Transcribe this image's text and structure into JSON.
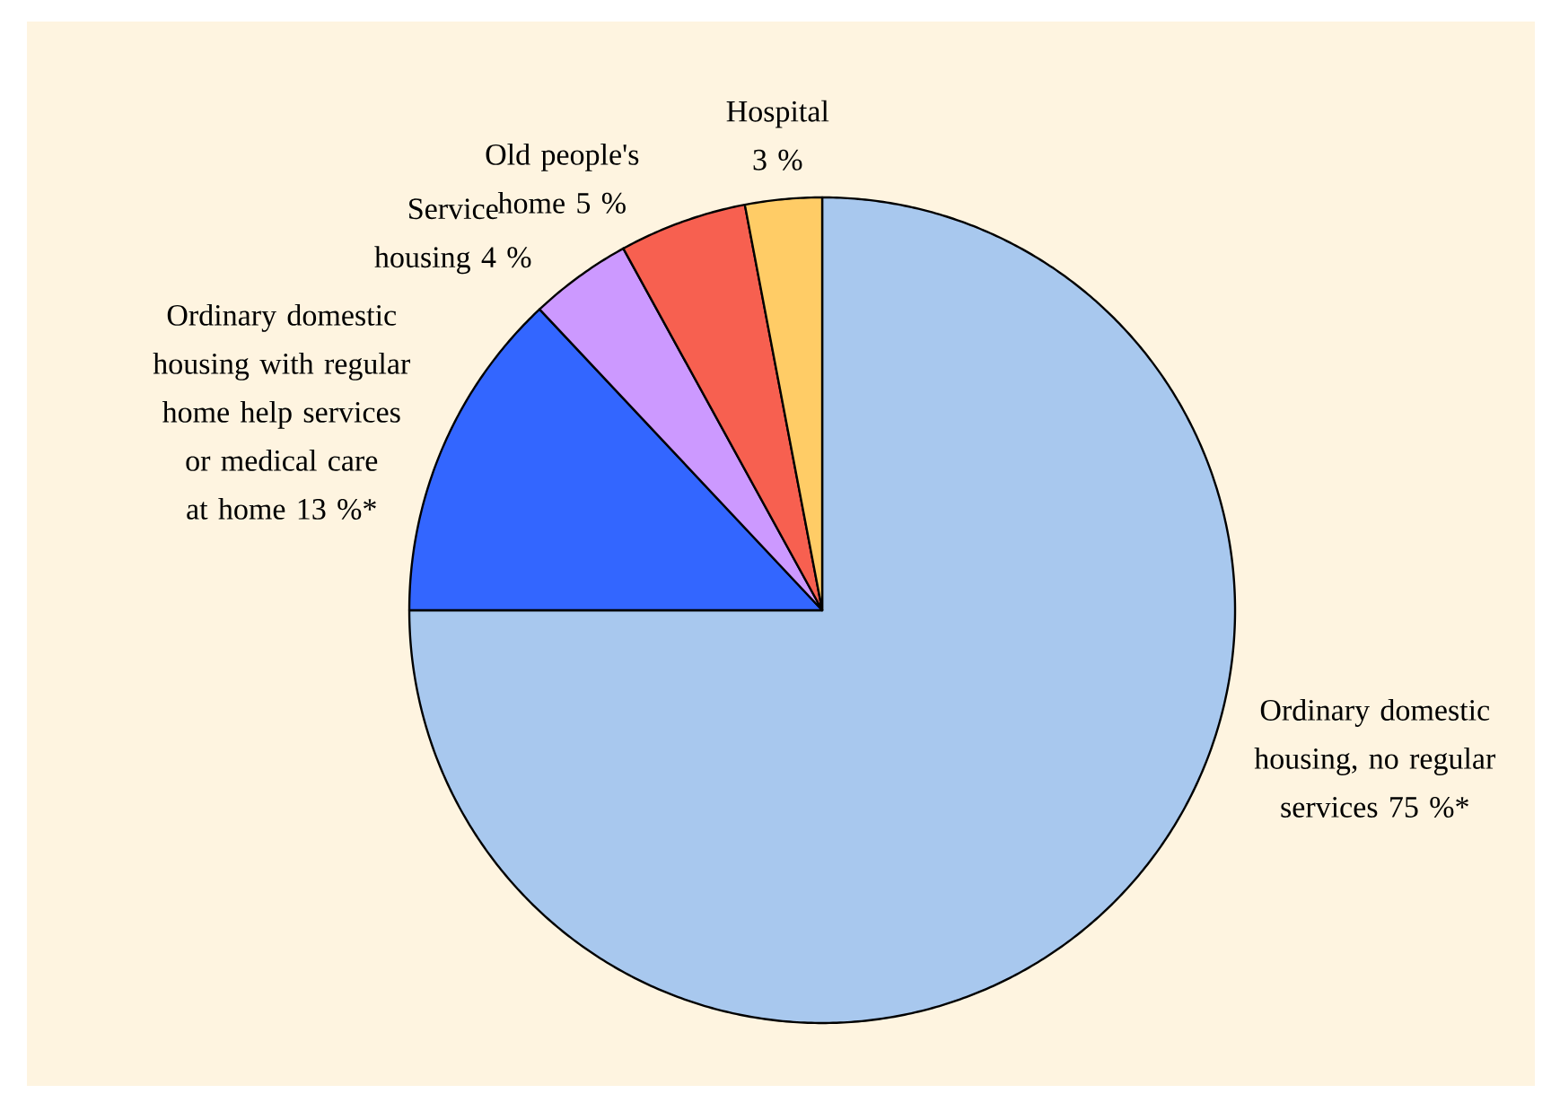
{
  "chart_data": {
    "type": "pie",
    "categories": [
      "Ordinary domestic housing, no regular services",
      "Ordinary domestic housing with regular home help services or medical care at home",
      "Service housing",
      "Old people's home",
      "Hospital"
    ],
    "values": [
      75,
      13,
      4,
      5,
      3
    ],
    "value_labels": [
      "75 %*",
      "13 %*",
      "4 %",
      "5 %",
      "3 %"
    ],
    "colors": [
      "#a8c8ee",
      "#3366ff",
      "#cc99ff",
      "#f76050",
      "#ffcc66"
    ]
  }
}
